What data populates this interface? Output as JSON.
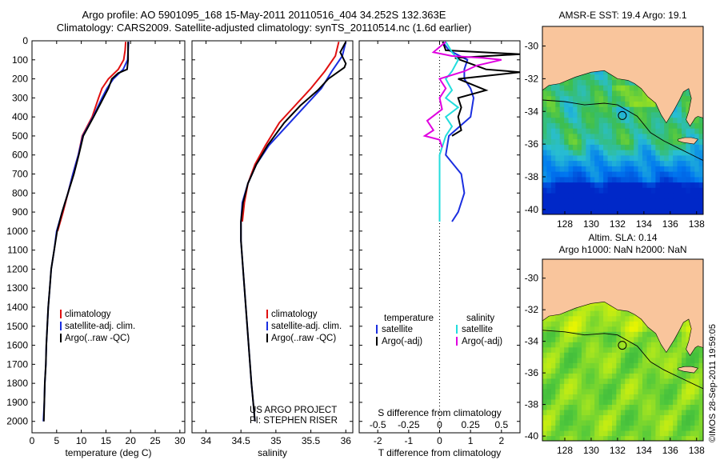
{
  "header": {
    "title_line1": "Argo profile: AO 5901095_168 15-May-2011 20110516_404 34.252S 132.363E",
    "title_line2": "Climatology: CARS2009. Satellite-adjusted climatology: synTS_20110514.nc (1.6d earlier)"
  },
  "timestamp": "©IMOS 28-Sep-2011 19:59:05",
  "colors": {
    "climatology": "#e01010",
    "satellite": "#1a2ee0",
    "argo": "#000000",
    "satellite_s": "#22dddd",
    "argo_s": "#e000e0",
    "land": "#f9c59c"
  },
  "chart_data": [
    {
      "id": "temperature",
      "type": "line",
      "xlabel": "temperature (deg C)",
      "ylabel": "",
      "xlim": [
        0,
        31
      ],
      "ylim": [
        0,
        2060
      ],
      "xticks": [
        0,
        5,
        10,
        15,
        20,
        25,
        30
      ],
      "yticks": [
        0,
        100,
        200,
        300,
        400,
        500,
        600,
        700,
        800,
        900,
        1000,
        1100,
        1200,
        1300,
        1400,
        1500,
        1600,
        1700,
        1800,
        1900,
        2000
      ],
      "legend": [
        "climatology",
        "satellite-adj. clim.",
        "Argo(..raw -QC)"
      ],
      "legend_position": "lower-center",
      "series": [
        {
          "name": "climatology",
          "points": [
            [
              19.0,
              5
            ],
            [
              18.9,
              50
            ],
            [
              18.6,
              100
            ],
            [
              17.5,
              150
            ],
            [
              15.5,
              200
            ],
            [
              14.2,
              250
            ],
            [
              13.5,
              300
            ],
            [
              12.2,
              400
            ],
            [
              10.2,
              500
            ],
            [
              9.4,
              600
            ],
            [
              8.3,
              700
            ],
            [
              7.3,
              800
            ],
            [
              6.3,
              900
            ],
            [
              5.2,
              1000
            ]
          ]
        },
        {
          "name": "satellite-adj. clim.",
          "points": [
            [
              19.6,
              5
            ],
            [
              19.5,
              50
            ],
            [
              19.4,
              100
            ],
            [
              18.5,
              150
            ],
            [
              16.5,
              200
            ],
            [
              15.2,
              250
            ],
            [
              14.2,
              300
            ],
            [
              12.4,
              400
            ],
            [
              10.3,
              500
            ],
            [
              9.4,
              600
            ],
            [
              8.3,
              700
            ],
            [
              7.3,
              800
            ],
            [
              6.1,
              900
            ],
            [
              5.0,
              1000
            ],
            [
              4.5,
              1100
            ],
            [
              3.9,
              1200
            ],
            [
              3.6,
              1300
            ],
            [
              3.3,
              1400
            ],
            [
              3.1,
              1500
            ],
            [
              2.9,
              1600
            ],
            [
              2.8,
              1700
            ],
            [
              2.6,
              1800
            ],
            [
              2.5,
              1900
            ],
            [
              2.3,
              2000
            ]
          ]
        },
        {
          "name": "Argo(..raw -QC)",
          "points": [
            [
              19.5,
              5
            ],
            [
              19.5,
              50
            ],
            [
              19.5,
              100
            ],
            [
              19.3,
              150
            ],
            [
              17.5,
              170
            ],
            [
              16.2,
              200
            ],
            [
              15.5,
              250
            ],
            [
              14.5,
              300
            ],
            [
              12.5,
              400
            ],
            [
              10.4,
              500
            ],
            [
              9.5,
              600
            ],
            [
              8.5,
              700
            ],
            [
              7.3,
              800
            ],
            [
              6.1,
              900
            ],
            [
              5.1,
              1000
            ],
            [
              4.5,
              1100
            ],
            [
              3.9,
              1200
            ],
            [
              3.6,
              1300
            ],
            [
              3.3,
              1400
            ],
            [
              3.1,
              1500
            ],
            [
              2.9,
              1600
            ],
            [
              2.8,
              1700
            ],
            [
              2.6,
              1800
            ],
            [
              2.5,
              1900
            ],
            [
              2.4,
              2000
            ]
          ]
        }
      ]
    },
    {
      "id": "salinity",
      "type": "line",
      "xlabel": "salinity",
      "ylabel": "",
      "xlim": [
        33.8,
        36.1
      ],
      "ylim": [
        0,
        2060
      ],
      "xticks": [
        34,
        34.5,
        35,
        35.5,
        36
      ],
      "legend": [
        "climatology",
        "satellite-adj. clim.",
        "Argo(..raw -QC)"
      ],
      "legend_position": "lower-center",
      "note_lines": [
        "US ARGO PROJECT",
        "PI: STEPHEN RISER"
      ],
      "series": [
        {
          "name": "climatology",
          "points": [
            [
              35.9,
              5
            ],
            [
              35.85,
              80
            ],
            [
              35.7,
              160
            ],
            [
              35.5,
              250
            ],
            [
              35.3,
              330
            ],
            [
              35.05,
              430
            ],
            [
              34.85,
              550
            ],
            [
              34.7,
              650
            ],
            [
              34.6,
              750
            ],
            [
              34.55,
              850
            ],
            [
              34.52,
              950
            ]
          ]
        },
        {
          "name": "satellite-adj. clim.",
          "points": [
            [
              36.0,
              5
            ],
            [
              35.95,
              80
            ],
            [
              35.8,
              160
            ],
            [
              35.65,
              250
            ],
            [
              35.45,
              330
            ],
            [
              35.2,
              430
            ],
            [
              34.9,
              550
            ],
            [
              34.72,
              650
            ],
            [
              34.6,
              750
            ],
            [
              34.52,
              850
            ],
            [
              34.5,
              950
            ],
            [
              34.5,
              1050
            ],
            [
              34.53,
              1200
            ],
            [
              34.57,
              1400
            ],
            [
              34.61,
              1600
            ],
            [
              34.65,
              1800
            ],
            [
              34.7,
              2000
            ]
          ]
        },
        {
          "name": "Argo(..raw -QC)",
          "points": [
            [
              36.0,
              5
            ],
            [
              35.92,
              60
            ],
            [
              36.0,
              120
            ],
            [
              35.98,
              140
            ],
            [
              35.75,
              200
            ],
            [
              35.6,
              260
            ],
            [
              35.35,
              340
            ],
            [
              35.12,
              430
            ],
            [
              34.88,
              550
            ],
            [
              34.72,
              650
            ],
            [
              34.6,
              750
            ],
            [
              34.53,
              850
            ],
            [
              34.5,
              950
            ],
            [
              34.5,
              1050
            ],
            [
              34.53,
              1200
            ],
            [
              34.57,
              1400
            ],
            [
              34.61,
              1600
            ],
            [
              34.65,
              1800
            ],
            [
              34.7,
              2000
            ]
          ]
        }
      ]
    },
    {
      "id": "difference",
      "type": "line",
      "xlabel": "T difference from climatology",
      "x2label": "S difference from climatology",
      "ylabel": "",
      "xlim": [
        -2.6,
        2.6
      ],
      "ylim": [
        0,
        2060
      ],
      "xticks": [
        -2,
        -1,
        0,
        1,
        2
      ],
      "xtick_labels": [
        "-2",
        "-1",
        "0",
        "1",
        "2"
      ],
      "x2ticks": [
        -0.5,
        -0.25,
        0,
        0.25,
        0.5
      ],
      "x2tick_labels": [
        "-0.5",
        "-0.25",
        "0",
        "0.25",
        "0.5"
      ],
      "x2_to_x_scale": 4,
      "legend_headers": [
        "temperature",
        "salinity"
      ],
      "legend": [
        "satellite",
        "Argo(-adj)",
        "satellite",
        "Argo(-adj)"
      ],
      "legend_position": "lower-center",
      "series": [
        {
          "name": "satellite",
          "group": "temperature",
          "points": [
            [
              0.1,
              5
            ],
            [
              0.3,
              50
            ],
            [
              0.9,
              100
            ],
            [
              0.8,
              150
            ],
            [
              0.8,
              200
            ],
            [
              1.0,
              250
            ],
            [
              1.1,
              300
            ],
            [
              1.0,
              400
            ],
            [
              0.3,
              500
            ],
            [
              0.2,
              600
            ],
            [
              0.7,
              700
            ],
            [
              0.8,
              800
            ],
            [
              0.6,
              900
            ],
            [
              0.4,
              950
            ]
          ]
        },
        {
          "name": "Argo(-adj)",
          "group": "temperature",
          "points": [
            [
              0.1,
              5
            ],
            [
              0.2,
              50
            ],
            [
              2.6,
              70
            ],
            [
              0.5,
              90
            ],
            [
              1.5,
              150
            ],
            [
              2.6,
              165
            ],
            [
              0.6,
              200
            ],
            [
              1.5,
              260
            ],
            [
              0.6,
              300
            ],
            [
              0.7,
              350
            ],
            [
              0.6,
              400
            ],
            [
              0.7,
              470
            ],
            [
              0.4,
              500
            ]
          ]
        },
        {
          "name": "satellite",
          "group": "salinity",
          "points": [
            [
              0.05,
              5
            ],
            [
              0.1,
              60
            ],
            [
              0.15,
              100
            ],
            [
              0.1,
              160
            ],
            [
              0.05,
              200
            ],
            [
              0.1,
              260
            ],
            [
              0.05,
              300
            ],
            [
              0.15,
              350
            ],
            [
              0.05,
              400
            ],
            [
              0.1,
              450
            ],
            [
              0.05,
              500
            ],
            [
              0.0,
              600
            ],
            [
              0.0,
              700
            ],
            [
              0.0,
              800
            ],
            [
              0.0,
              900
            ],
            [
              0.0,
              950
            ]
          ]
        },
        {
          "name": "Argo(-adj)",
          "group": "salinity",
          "points": [
            [
              0.05,
              5
            ],
            [
              -0.05,
              60
            ],
            [
              0.1,
              80
            ],
            [
              0.35,
              90
            ],
            [
              0.5,
              100
            ],
            [
              0.3,
              130
            ],
            [
              0.2,
              160
            ],
            [
              0.0,
              200
            ],
            [
              0.05,
              250
            ],
            [
              0.0,
              300
            ],
            [
              0.02,
              360
            ],
            [
              -0.1,
              420
            ],
            [
              -0.05,
              470
            ],
            [
              -0.12,
              500
            ],
            [
              0.0,
              520
            ],
            [
              0.02,
              560
            ]
          ]
        }
      ]
    },
    {
      "id": "sst_map",
      "type": "heatmap",
      "title": "AMSR-E SST: 19.4 Argo: 19.1",
      "xlim": [
        126.3,
        138.5
      ],
      "ylim": [
        -40.3,
        -28.8
      ],
      "xticks": [
        128,
        130,
        132,
        134,
        136,
        138
      ],
      "yticks": [
        -30,
        -32,
        -34,
        -36,
        -38,
        -40
      ],
      "marker": [
        132.363,
        -34.252
      ]
    },
    {
      "id": "sla_map",
      "type": "heatmap",
      "title_line1": "Altim. SLA: 0.14",
      "title_line2": "Argo h1000: NaN h2000: NaN",
      "xlim": [
        126.3,
        138.5
      ],
      "ylim": [
        -40.3,
        -28.8
      ],
      "xticks": [
        128,
        130,
        132,
        134,
        136,
        138
      ],
      "yticks": [
        -30,
        -32,
        -34,
        -36,
        -38,
        -40
      ],
      "marker": [
        132.363,
        -34.252
      ]
    }
  ]
}
